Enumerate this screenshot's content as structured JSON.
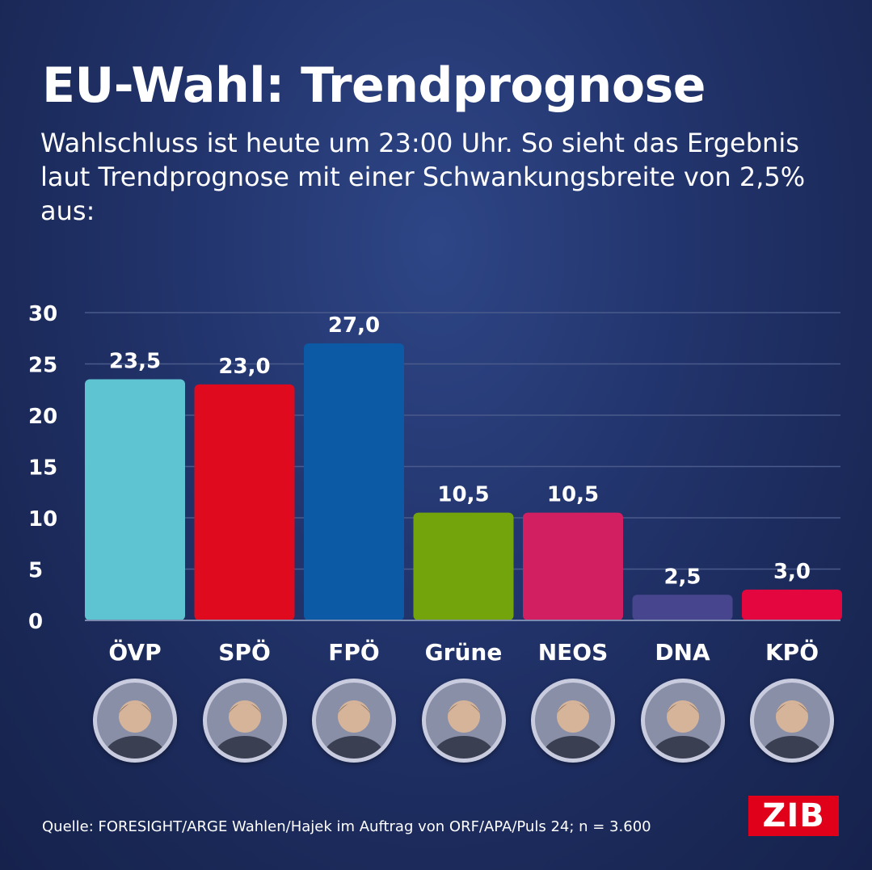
{
  "title": "EU-Wahl: Trendprognose",
  "subtitle": "Wahlschluss ist heute um 23:00 Uhr. So sieht das Ergebnis laut Trendprognose mit einer Schwankungsbreite von 2,5% aus:",
  "source": "Quelle: FORESIGHT/ARGE Wahlen/Hajek im Auftrag von ORF/APA/Puls 24; n = 3.600",
  "logo": "ZIB",
  "colors": {
    "background": "#1f2f63",
    "gridline": "#4a5a8a",
    "ÖVP": "#5ec4d1",
    "SPÖ": "#df0a1e",
    "FPÖ": "#0c5aa6",
    "Grüne": "#74a40c",
    "NEOS": "#d21f62",
    "DNA": "#46458d",
    "KPÖ": "#e4063e"
  },
  "chart_data": {
    "type": "bar",
    "categories": [
      "ÖVP",
      "SPÖ",
      "FPÖ",
      "Grüne",
      "NEOS",
      "DNA",
      "KPÖ"
    ],
    "values": [
      23.5,
      23.0,
      27.0,
      10.5,
      10.5,
      2.5,
      3.0
    ],
    "value_labels": [
      "23,5",
      "23,0",
      "27,0",
      "10,5",
      "10,5",
      "2,5",
      "3,0"
    ],
    "yticks": [
      0,
      5,
      10,
      15,
      20,
      25,
      30
    ],
    "ylim": [
      0,
      30
    ],
    "grid": true,
    "legend": "none"
  },
  "candidates": [
    {
      "party": "ÖVP",
      "icon": "candidate-photo"
    },
    {
      "party": "SPÖ",
      "icon": "candidate-photo"
    },
    {
      "party": "FPÖ",
      "icon": "candidate-photo"
    },
    {
      "party": "Grüne",
      "icon": "candidate-photo"
    },
    {
      "party": "NEOS",
      "icon": "candidate-photo"
    },
    {
      "party": "DNA",
      "icon": "candidate-photo"
    },
    {
      "party": "KPÖ",
      "icon": "candidate-photo"
    }
  ]
}
